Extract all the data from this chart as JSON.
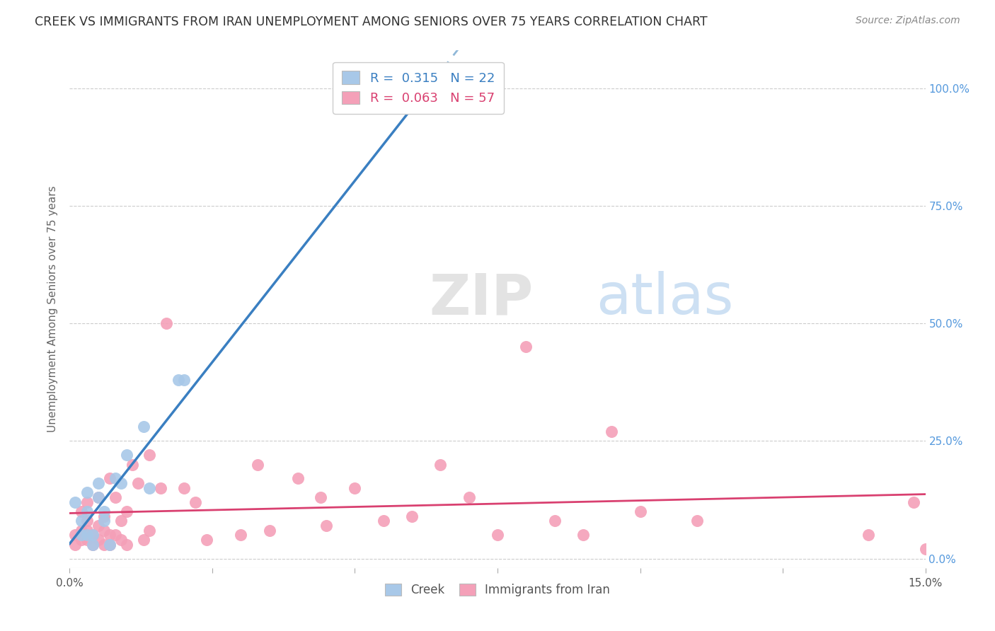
{
  "title": "CREEK VS IMMIGRANTS FROM IRAN UNEMPLOYMENT AMONG SENIORS OVER 75 YEARS CORRELATION CHART",
  "source": "Source: ZipAtlas.com",
  "ylabel": "Unemployment Among Seniors over 75 years",
  "xlim": [
    0.0,
    0.15
  ],
  "ylim": [
    -0.02,
    1.08
  ],
  "creek_color": "#a8c8e8",
  "iran_color": "#f4a0b8",
  "creek_line_color": "#3a7fc1",
  "iran_line_color": "#d94070",
  "creek_dashed_color": "#90b8d8",
  "creek_R": 0.315,
  "creek_N": 22,
  "iran_R": 0.063,
  "iran_N": 57,
  "creek_x": [
    0.001,
    0.002,
    0.002,
    0.003,
    0.003,
    0.003,
    0.004,
    0.004,
    0.005,
    0.005,
    0.006,
    0.006,
    0.007,
    0.008,
    0.009,
    0.01,
    0.013,
    0.014,
    0.019,
    0.02,
    0.063,
    0.063
  ],
  "creek_y": [
    0.12,
    0.05,
    0.08,
    0.05,
    0.1,
    0.14,
    0.03,
    0.05,
    0.13,
    0.16,
    0.08,
    0.1,
    0.03,
    0.17,
    0.16,
    0.22,
    0.28,
    0.15,
    0.38,
    0.38,
    1.0,
    1.0
  ],
  "iran_x": [
    0.001,
    0.001,
    0.002,
    0.002,
    0.002,
    0.003,
    0.003,
    0.003,
    0.003,
    0.004,
    0.004,
    0.005,
    0.005,
    0.005,
    0.006,
    0.006,
    0.006,
    0.007,
    0.007,
    0.007,
    0.008,
    0.008,
    0.009,
    0.009,
    0.01,
    0.01,
    0.011,
    0.012,
    0.013,
    0.014,
    0.014,
    0.016,
    0.017,
    0.02,
    0.022,
    0.024,
    0.03,
    0.033,
    0.035,
    0.04,
    0.044,
    0.045,
    0.05,
    0.055,
    0.06,
    0.065,
    0.07,
    0.075,
    0.08,
    0.085,
    0.09,
    0.095,
    0.1,
    0.11,
    0.14,
    0.148,
    0.15
  ],
  "iran_y": [
    0.03,
    0.05,
    0.04,
    0.06,
    0.1,
    0.04,
    0.06,
    0.08,
    0.12,
    0.03,
    0.05,
    0.04,
    0.07,
    0.13,
    0.03,
    0.06,
    0.09,
    0.03,
    0.05,
    0.17,
    0.05,
    0.13,
    0.04,
    0.08,
    0.03,
    0.1,
    0.2,
    0.16,
    0.04,
    0.22,
    0.06,
    0.15,
    0.5,
    0.15,
    0.12,
    0.04,
    0.05,
    0.2,
    0.06,
    0.17,
    0.13,
    0.07,
    0.15,
    0.08,
    0.09,
    0.2,
    0.13,
    0.05,
    0.45,
    0.08,
    0.05,
    0.27,
    0.1,
    0.08,
    0.05,
    0.12,
    0.02
  ],
  "yticks": [
    0.0,
    0.25,
    0.5,
    0.75,
    1.0
  ],
  "ytick_labels": [
    "0.0%",
    "25.0%",
    "50.0%",
    "75.0%",
    "100.0%"
  ],
  "xticks": [
    0.0,
    0.025,
    0.05,
    0.075,
    0.1,
    0.125,
    0.15
  ],
  "xtick_labels": [
    "0.0%",
    "",
    "",
    "",
    "",
    "",
    "15.0%"
  ]
}
